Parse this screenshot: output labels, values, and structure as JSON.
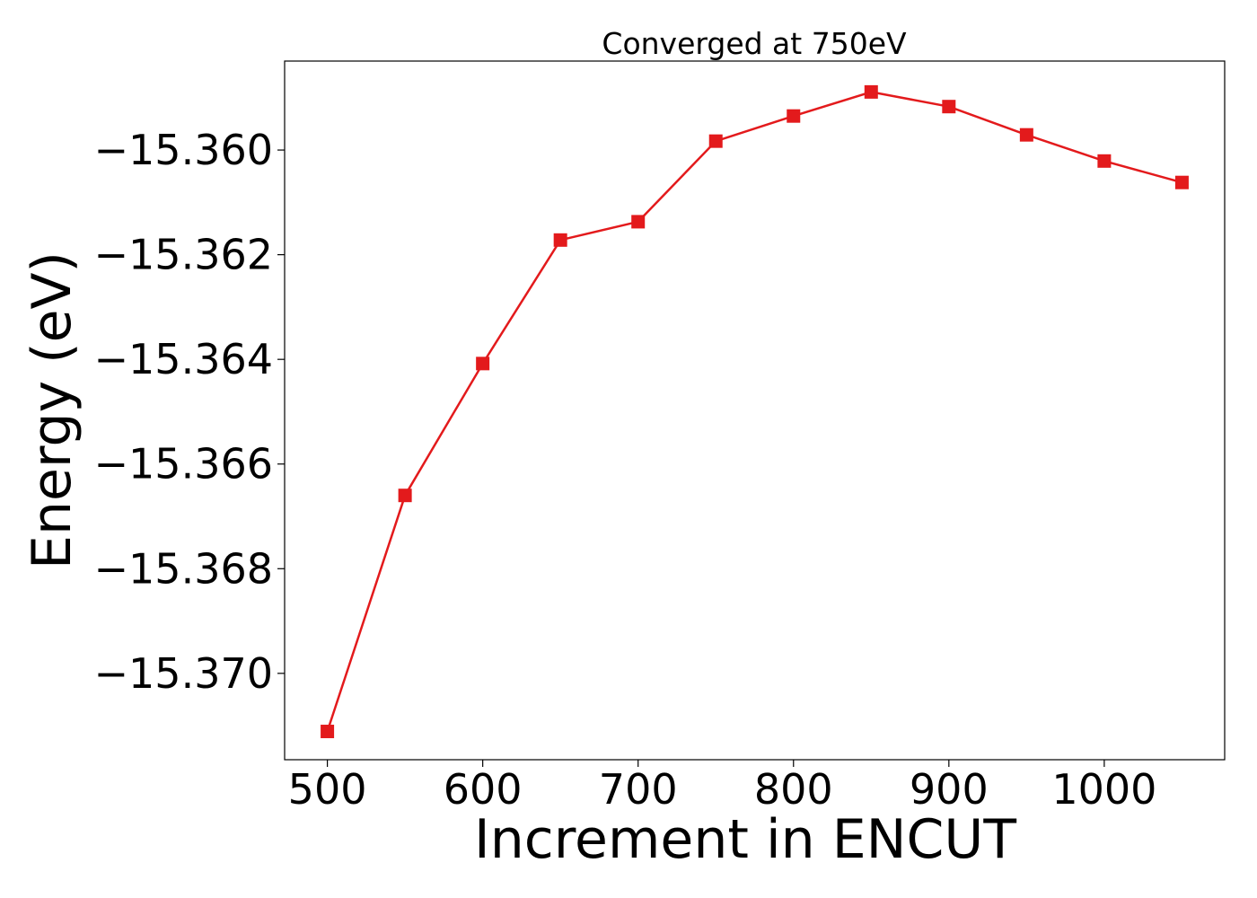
{
  "chart_data": {
    "type": "line",
    "title": "Converged at 750eV",
    "xlabel": "Increment in ENCUT",
    "ylabel": "Energy (eV)",
    "xlim": [
      472.5,
      1077.5
    ],
    "ylim": [
      -15.37165,
      -15.3583
    ],
    "x_ticks": [
      500,
      600,
      700,
      800,
      900,
      1000
    ],
    "x_tick_labels": [
      "500",
      "600",
      "700",
      "800",
      "900",
      "1000"
    ],
    "y_ticks": [
      -15.36,
      -15.362,
      -15.364,
      -15.366,
      -15.368,
      -15.37
    ],
    "y_tick_labels": [
      "−15.360",
      "−15.362",
      "−15.364",
      "−15.366",
      "−15.368",
      "−15.370"
    ],
    "grid": false,
    "series": [
      {
        "color": "#e31a1c",
        "marker": "square",
        "x": [
          500,
          550,
          600,
          650,
          700,
          750,
          800,
          850,
          900,
          950,
          1000,
          1050
        ],
        "y": [
          -15.37111,
          -15.3666,
          -15.36408,
          -15.36172,
          -15.36137,
          -15.35983,
          -15.35935,
          -15.35889,
          -15.35917,
          -15.35971,
          -15.36021,
          -15.36062
        ]
      }
    ]
  }
}
